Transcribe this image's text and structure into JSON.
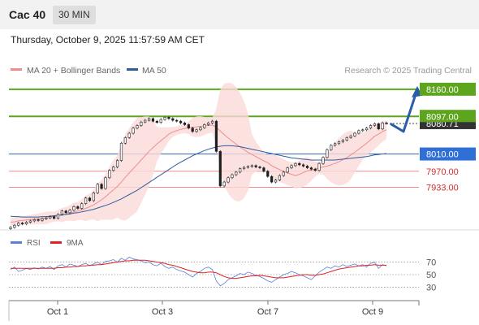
{
  "header": {
    "symbol": "Cac 40",
    "timeframe": "30 MIN",
    "timestamp": "Thursday, October 9, 2025 11:57:59 AM CET"
  },
  "legend": {
    "items": [
      {
        "label": "MA 20 + Bollinger Bands",
        "color": "#ef8d8d"
      },
      {
        "label": "MA 50",
        "color": "#2e5d9e"
      }
    ],
    "credit": "Research © 2025 Trading Central"
  },
  "rsi_legend": {
    "items": [
      {
        "label": "RSI",
        "color": "#5b7fd6"
      },
      {
        "label": "9MA",
        "color": "#e02222"
      }
    ]
  },
  "chart_data": [
    {
      "type": "candlestick",
      "title": "",
      "x_ticks": [
        "Oct 1",
        "Oct 3",
        "Oct 7",
        "Oct 9"
      ],
      "ylim": [
        7836,
        8186
      ],
      "current_price": {
        "label": "8080.71",
        "value": 8080.71
      },
      "levels": [
        {
          "label": "8160.00",
          "value": 8160,
          "kind": "resistance"
        },
        {
          "label": "8097.00",
          "value": 8097,
          "kind": "resistance"
        },
        {
          "label": "8010.00",
          "value": 8010,
          "kind": "pivot"
        },
        {
          "label": "7970.00",
          "value": 7970,
          "kind": "support"
        },
        {
          "label": "7933.00",
          "value": 7933,
          "kind": "support"
        }
      ],
      "forecast_path": [
        8080,
        8062,
        8160
      ],
      "series": [
        {
          "name": "Price",
          "values": [
            7840,
            7845,
            7850,
            7848,
            7852,
            7855,
            7858,
            7856,
            7860,
            7862,
            7865,
            7861,
            7870,
            7878,
            7874,
            7880,
            7888,
            7884,
            7895,
            7908,
            7902,
            7920,
            7940,
            7930,
            7955,
            7972,
            7980,
            7995,
            8035,
            8048,
            8058,
            8070,
            8076,
            8084,
            8088,
            8092,
            8086,
            8083,
            8090,
            8095,
            8092,
            8088,
            8086,
            8082,
            8078,
            8070,
            8062,
            8066,
            8071,
            8078,
            8082,
            8086,
            8016,
            7936,
            7945,
            7955,
            7962,
            7968,
            7976,
            7979,
            7981,
            7983,
            7980,
            7978,
            7970,
            7958,
            7945,
            7950,
            7960,
            7968,
            7978,
            7983,
            7988,
            7985,
            7982,
            7978,
            7975,
            7972,
            7988,
            8002,
            8020,
            8030,
            8034,
            8038,
            8042,
            8048,
            8052,
            8058,
            8064,
            8066,
            8070,
            8076,
            8080,
            8068,
            8082,
            8080.71
          ]
        },
        {
          "name": "MA 20",
          "values": [
            7852,
            7853,
            7855,
            7856,
            7857,
            7858,
            7859,
            7860,
            7861,
            7862,
            7864,
            7865,
            7867,
            7869,
            7871,
            7873,
            7876,
            7878,
            7881,
            7884,
            7888,
            7892,
            7898,
            7904,
            7911,
            7919,
            7927,
            7935,
            7945,
            7956,
            7966,
            7976,
            7986,
            7996,
            8006,
            8016,
            8025,
            8033,
            8041,
            8048,
            8056,
            8061,
            8064,
            8067,
            8069,
            8071,
            8072,
            8073,
            8074,
            8075,
            8076,
            8077,
            8072,
            8063,
            8055,
            8047,
            8040,
            8033,
            8026,
            8020,
            8014,
            8009,
            8004,
            7999,
            7994,
            7990,
            7983,
            7978,
            7974,
            7970,
            7966,
            7963,
            7960,
            7963,
            7967,
            7971,
            7973,
            7975,
            7978,
            7980,
            7982,
            7985,
            7988,
            7992,
            7997,
            8002,
            8008,
            8014,
            8021,
            8028,
            8035,
            8043,
            8051,
            8056,
            8062,
            8066
          ]
        },
        {
          "name": "MA 50",
          "values": [
            7866,
            7865,
            7865,
            7864,
            7864,
            7864,
            7864,
            7864,
            7865,
            7865,
            7866,
            7867,
            7868,
            7869,
            7870,
            7871,
            7873,
            7874,
            7876,
            7878,
            7880,
            7882,
            7885,
            7888,
            7891,
            7894,
            7898,
            7902,
            7906,
            7911,
            7916,
            7921,
            7926,
            7932,
            7938,
            7944,
            7950,
            7956,
            7962,
            7968,
            7974,
            7980,
            7986,
            7991,
            7996,
            8001,
            8006,
            8010,
            8014,
            8018,
            8021,
            8024,
            8026,
            8028,
            8029,
            8029,
            8029,
            8028,
            8027,
            8025,
            8023,
            8021,
            8019,
            8017,
            8015,
            8013,
            8011,
            8009,
            8007,
            8005,
            8003,
            8001,
            8000,
            7999,
            7998,
            7997,
            7996,
            7996,
            7996,
            7996,
            7996,
            7996,
            7996,
            7997,
            7998,
            7999,
            8000,
            8001,
            8002,
            8003,
            8004,
            8006,
            8008,
            8009,
            8010,
            8011
          ]
        }
      ]
    },
    {
      "type": "line",
      "title": "RSI",
      "x_ticks": [
        "Oct 1",
        "Oct 3",
        "Oct 7",
        "Oct 9"
      ],
      "ylim": [
        15,
        85
      ],
      "y_ticks": [
        "70",
        "50",
        "30"
      ],
      "series": [
        {
          "name": "RSI",
          "values": [
            58,
            62,
            55,
            57,
            60,
            58,
            61,
            59,
            62,
            60,
            63,
            58,
            64,
            66,
            62,
            67,
            65,
            63,
            66,
            68,
            64,
            67,
            70,
            66,
            71,
            72,
            74,
            70,
            76,
            73,
            78,
            75,
            74,
            72,
            69,
            70,
            66,
            64,
            68,
            63,
            60,
            62,
            58,
            56,
            54,
            50,
            46,
            52,
            55,
            60,
            62,
            58,
            40,
            32,
            36,
            42,
            45,
            48,
            52,
            50,
            54,
            52,
            49,
            47,
            44,
            40,
            38,
            42,
            46,
            50,
            52,
            55,
            53,
            50,
            48,
            45,
            42,
            48,
            54,
            58,
            62,
            60,
            64,
            62,
            66,
            63,
            65,
            67,
            64,
            66,
            62,
            68,
            70,
            60,
            66,
            64
          ]
        },
        {
          "name": "9MA",
          "values": [
            60,
            60,
            60,
            60,
            60,
            60,
            60,
            60,
            60,
            60,
            60,
            60,
            61,
            61,
            62,
            62,
            63,
            63,
            64,
            64,
            65,
            65,
            66,
            66,
            67,
            68,
            69,
            70,
            71,
            72,
            72,
            73,
            73,
            73,
            73,
            72,
            71,
            70,
            69,
            68,
            66,
            65,
            63,
            61,
            59,
            57,
            55,
            54,
            53,
            53,
            54,
            54,
            53,
            50,
            47,
            45,
            44,
            44,
            45,
            46,
            47,
            48,
            48,
            49,
            48,
            47,
            46,
            45,
            45,
            45,
            46,
            47,
            48,
            49,
            50,
            50,
            49,
            49,
            50,
            51,
            53,
            55,
            57,
            59,
            60,
            61,
            62,
            63,
            64,
            64,
            65,
            65,
            66,
            65,
            65,
            65
          ]
        }
      ]
    }
  ]
}
